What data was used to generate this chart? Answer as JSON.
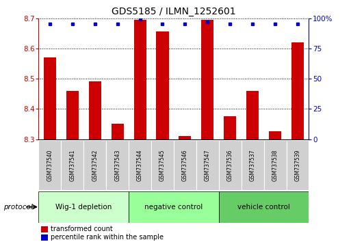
{
  "title": "GDS5185 / ILMN_1252601",
  "samples": [
    "GSM737540",
    "GSM737541",
    "GSM737542",
    "GSM737543",
    "GSM737544",
    "GSM737545",
    "GSM737546",
    "GSM737547",
    "GSM737536",
    "GSM737537",
    "GSM737538",
    "GSM737539"
  ],
  "red_values": [
    8.57,
    8.46,
    8.49,
    8.35,
    8.695,
    8.655,
    8.31,
    8.695,
    8.375,
    8.46,
    8.325,
    8.62
  ],
  "blue_values": [
    95,
    95,
    95,
    95,
    99,
    95,
    95,
    97,
    95,
    95,
    95,
    95
  ],
  "ylim_left": [
    8.3,
    8.7
  ],
  "ylim_right": [
    0,
    100
  ],
  "yticks_left": [
    8.3,
    8.4,
    8.5,
    8.6,
    8.7
  ],
  "yticks_right": [
    0,
    25,
    50,
    75,
    100
  ],
  "ytick_labels_right": [
    "0",
    "25",
    "50",
    "75",
    "100%"
  ],
  "groups": [
    {
      "label": "Wig-1 depletion",
      "start": 0,
      "end": 4,
      "color": "#ccffcc"
    },
    {
      "label": "negative control",
      "start": 4,
      "end": 8,
      "color": "#99ff99"
    },
    {
      "label": "vehicle control",
      "start": 8,
      "end": 12,
      "color": "#66cc66"
    }
  ],
  "bar_color": "#cc0000",
  "dot_color": "#0000cc",
  "bg_color": "#ffffff",
  "grid_color": "#000000",
  "tick_color_left": "#cc0000",
  "tick_color_right": "#0000cc",
  "protocol_label": "protocol",
  "legend_red": "transformed count",
  "legend_blue": "percentile rank within the sample",
  "figsize": [
    5.13,
    3.54
  ],
  "dpi": 100
}
